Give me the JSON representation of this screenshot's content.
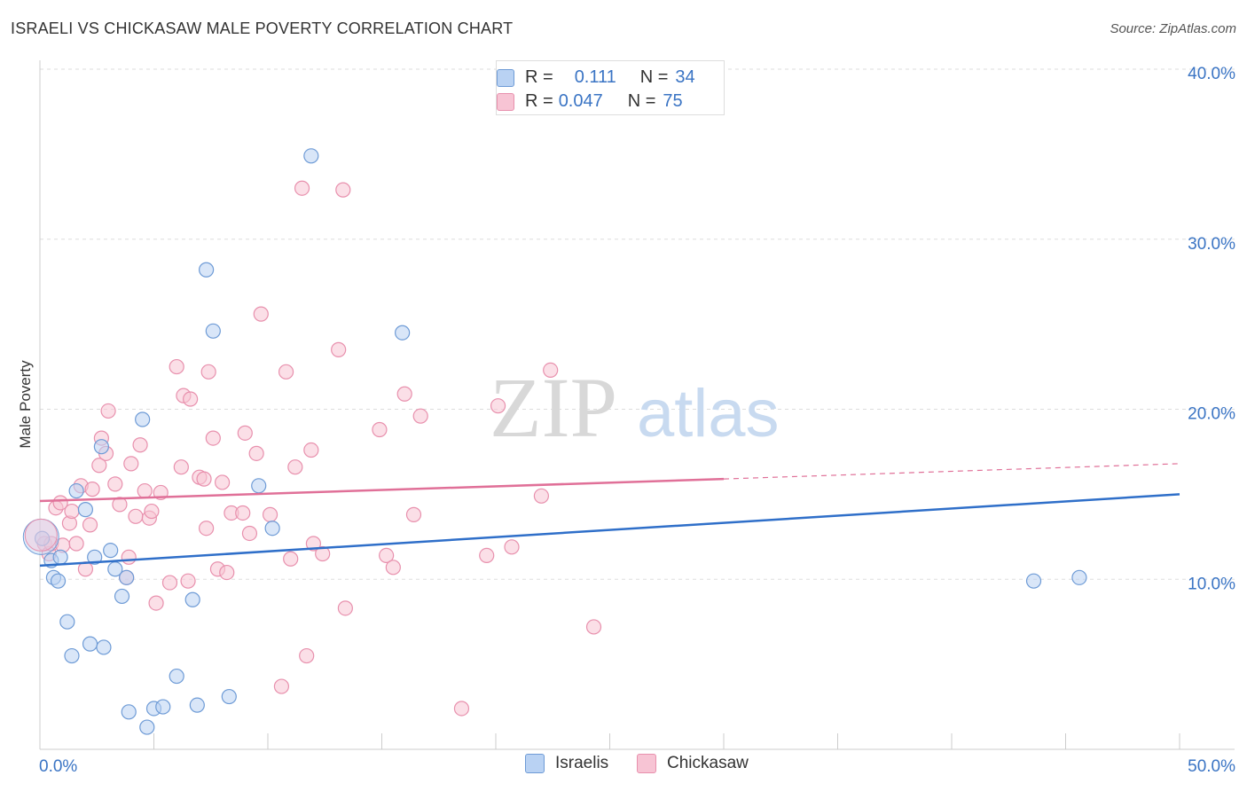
{
  "title": "ISRAELI VS CHICKASAW MALE POVERTY CORRELATION CHART",
  "source": "Source: ZipAtlas.com",
  "watermark": {
    "zip": "ZIP",
    "atlas": "atlas"
  },
  "colors": {
    "israelis_fill": "#b9d2f3",
    "israelis_stroke": "#6e9bd6",
    "israelis_line": "#2f6fc9",
    "chickasaw_fill": "#f7c4d4",
    "chickasaw_stroke": "#e890ad",
    "chickasaw_line": "#e07098",
    "axis_label": "#3a74c4",
    "grid": "#dddddd"
  },
  "legend": {
    "rows": [
      {
        "r_label": "R =",
        "r_value": "0.111",
        "n_label": "N =",
        "n_value": "34"
      },
      {
        "r_label": "R =",
        "r_value": "0.047",
        "n_label": "N =",
        "n_value": "75"
      }
    ]
  },
  "bottom_legend": [
    "Israelis",
    "Chickasaw"
  ],
  "chart_data": {
    "type": "scatter",
    "title": "ISRAELI VS CHICKASAW MALE POVERTY CORRELATION CHART",
    "xlabel": "",
    "ylabel": "Male Poverty",
    "xlim": [
      0,
      50
    ],
    "ylim": [
      0,
      40
    ],
    "x_tick_labels": [
      "0.0%",
      "50.0%"
    ],
    "y_ticks": [
      10,
      20,
      30,
      40
    ],
    "y_tick_labels": [
      "10.0%",
      "20.0%",
      "30.0%",
      "40.0%"
    ],
    "grid": true,
    "legend_position": "top-center",
    "series": [
      {
        "name": "Israelis",
        "points": [
          [
            0.1,
            12.4
          ],
          [
            0.5,
            11.1
          ],
          [
            0.9,
            11.3
          ],
          [
            0.6,
            10.1
          ],
          [
            0.8,
            9.9
          ],
          [
            1.2,
            7.5
          ],
          [
            1.6,
            15.2
          ],
          [
            1.4,
            5.5
          ],
          [
            2.0,
            14.1
          ],
          [
            2.2,
            6.2
          ],
          [
            2.4,
            11.3
          ],
          [
            2.7,
            17.8
          ],
          [
            2.8,
            6.0
          ],
          [
            3.1,
            11.7
          ],
          [
            3.3,
            10.6
          ],
          [
            3.6,
            9.0
          ],
          [
            3.8,
            10.1
          ],
          [
            3.9,
            2.2
          ],
          [
            4.5,
            19.4
          ],
          [
            4.7,
            1.3
          ],
          [
            5.0,
            2.4
          ],
          [
            5.4,
            2.5
          ],
          [
            6.0,
            4.3
          ],
          [
            6.7,
            8.8
          ],
          [
            6.9,
            2.6
          ],
          [
            7.3,
            28.2
          ],
          [
            7.6,
            24.6
          ],
          [
            8.3,
            3.1
          ],
          [
            9.6,
            15.5
          ],
          [
            10.2,
            13.0
          ],
          [
            11.9,
            34.9
          ],
          [
            15.9,
            24.5
          ],
          [
            43.6,
            9.9
          ],
          [
            45.6,
            10.1
          ]
        ],
        "trend": {
          "x": [
            0,
            50
          ],
          "y": [
            10.8,
            15.0
          ]
        }
      },
      {
        "name": "Chickasaw",
        "points": [
          [
            0.2,
            12.1
          ],
          [
            0.4,
            11.5
          ],
          [
            0.5,
            12.1
          ],
          [
            0.7,
            14.2
          ],
          [
            0.9,
            14.5
          ],
          [
            1.0,
            12.0
          ],
          [
            1.3,
            13.3
          ],
          [
            1.4,
            14.0
          ],
          [
            1.6,
            12.1
          ],
          [
            1.8,
            15.5
          ],
          [
            2.0,
            10.6
          ],
          [
            2.2,
            13.2
          ],
          [
            2.3,
            15.3
          ],
          [
            2.6,
            16.7
          ],
          [
            2.7,
            18.3
          ],
          [
            2.9,
            17.4
          ],
          [
            3.0,
            19.9
          ],
          [
            3.3,
            15.6
          ],
          [
            3.5,
            14.4
          ],
          [
            3.8,
            10.1
          ],
          [
            3.9,
            11.3
          ],
          [
            4.0,
            16.8
          ],
          [
            4.2,
            13.7
          ],
          [
            4.4,
            17.9
          ],
          [
            4.6,
            15.2
          ],
          [
            4.8,
            13.6
          ],
          [
            4.9,
            14.0
          ],
          [
            5.1,
            8.6
          ],
          [
            5.3,
            15.1
          ],
          [
            5.7,
            9.8
          ],
          [
            6.0,
            22.5
          ],
          [
            6.2,
            16.6
          ],
          [
            6.3,
            20.8
          ],
          [
            6.5,
            9.9
          ],
          [
            6.6,
            20.6
          ],
          [
            7.0,
            16.0
          ],
          [
            7.2,
            15.9
          ],
          [
            7.3,
            13.0
          ],
          [
            7.4,
            22.2
          ],
          [
            7.6,
            18.3
          ],
          [
            7.8,
            10.6
          ],
          [
            8.0,
            15.7
          ],
          [
            8.2,
            10.4
          ],
          [
            8.4,
            13.9
          ],
          [
            8.9,
            13.9
          ],
          [
            9.0,
            18.6
          ],
          [
            9.2,
            12.7
          ],
          [
            9.5,
            17.4
          ],
          [
            9.7,
            25.6
          ],
          [
            10.1,
            13.8
          ],
          [
            10.6,
            3.7
          ],
          [
            10.8,
            22.2
          ],
          [
            11.0,
            11.2
          ],
          [
            11.2,
            16.6
          ],
          [
            11.5,
            33.0
          ],
          [
            11.7,
            5.5
          ],
          [
            11.9,
            17.6
          ],
          [
            12.0,
            12.1
          ],
          [
            12.4,
            11.5
          ],
          [
            13.1,
            23.5
          ],
          [
            13.3,
            32.9
          ],
          [
            13.4,
            8.3
          ],
          [
            14.9,
            18.8
          ],
          [
            15.2,
            11.4
          ],
          [
            15.5,
            10.7
          ],
          [
            16.0,
            20.9
          ],
          [
            16.4,
            13.8
          ],
          [
            16.7,
            19.6
          ],
          [
            18.5,
            2.4
          ],
          [
            19.6,
            11.4
          ],
          [
            20.1,
            20.2
          ],
          [
            20.7,
            11.9
          ],
          [
            22.4,
            22.3
          ],
          [
            24.3,
            7.2
          ],
          [
            22.0,
            14.9
          ]
        ],
        "trend": {
          "x": [
            0,
            30
          ],
          "y": [
            14.6,
            15.9
          ]
        },
        "trend_dashed": {
          "x": [
            30,
            50
          ],
          "y": [
            15.9,
            16.8
          ]
        }
      }
    ]
  }
}
